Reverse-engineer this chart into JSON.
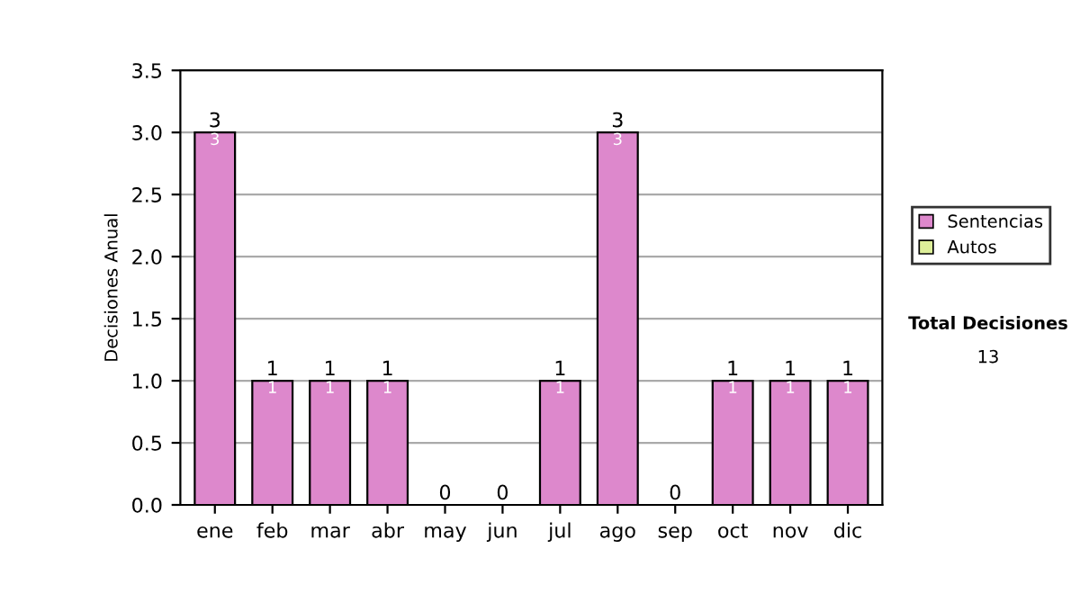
{
  "chart_data": {
    "type": "bar",
    "ylabel": "Decisiones Anual",
    "categories": [
      "ene",
      "feb",
      "mar",
      "abr",
      "may",
      "jun",
      "jul",
      "ago",
      "sep",
      "oct",
      "nov",
      "dic"
    ],
    "series": [
      {
        "name": "Sentencias",
        "color": "#dd88cc",
        "values": [
          3,
          1,
          1,
          1,
          0,
          0,
          1,
          3,
          0,
          1,
          1,
          1
        ],
        "value_labels": [
          "3",
          "1",
          "1",
          "1",
          null,
          null,
          "1",
          "3",
          null,
          "1",
          "1",
          "1"
        ]
      },
      {
        "name": "Autos",
        "color": "#ddee99",
        "values": [
          0,
          0,
          0,
          0,
          0,
          0,
          0,
          0,
          0,
          0,
          0,
          0
        ]
      }
    ],
    "stacked": true,
    "totals": [
      "3",
      "1",
      "1",
      "1",
      "0",
      "0",
      "1",
      "3",
      "0",
      "1",
      "1",
      "1"
    ],
    "ylim": [
      0,
      3.5
    ],
    "yticks": [
      {
        "value": 0,
        "label": "0.0"
      },
      {
        "value": 0.5,
        "label": "0.5"
      },
      {
        "value": 1,
        "label": "1.0"
      },
      {
        "value": 1.5,
        "label": "1.5"
      },
      {
        "value": 2,
        "label": "2.0"
      },
      {
        "value": 2.5,
        "label": "2.5"
      },
      {
        "value": 3,
        "label": "3.0"
      },
      {
        "value": 3.5,
        "label": "3.5"
      }
    ],
    "grid": "y",
    "legend": "right",
    "annotations": [
      "Total Decisiones",
      "13"
    ]
  }
}
